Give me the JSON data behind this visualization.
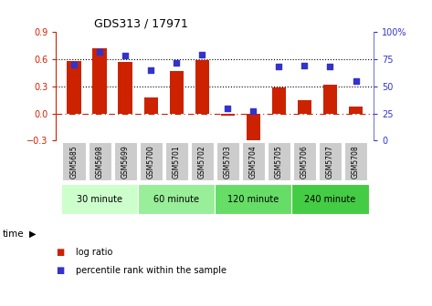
{
  "title": "GDS313 / 17971",
  "samples": [
    "GSM5685",
    "GSM5698",
    "GSM5699",
    "GSM5700",
    "GSM5701",
    "GSM5702",
    "GSM5703",
    "GSM5704",
    "GSM5705",
    "GSM5706",
    "GSM5707",
    "GSM5708"
  ],
  "log_ratio": [
    0.58,
    0.72,
    0.57,
    0.18,
    0.47,
    0.59,
    -0.02,
    -0.38,
    0.29,
    0.15,
    0.32,
    0.08
  ],
  "percentile": [
    70,
    82,
    78,
    65,
    72,
    79,
    30,
    27,
    68,
    69,
    68,
    55
  ],
  "bar_color": "#cc2200",
  "dot_color": "#3333cc",
  "ylim_left": [
    -0.3,
    0.9
  ],
  "ylim_right": [
    0,
    100
  ],
  "yticks_left": [
    -0.3,
    0.0,
    0.3,
    0.6,
    0.9
  ],
  "yticks_right": [
    0,
    25,
    50,
    75,
    100
  ],
  "hline_dotted": [
    0.3,
    0.6
  ],
  "hline_dash": 0.0,
  "groups": [
    {
      "label": "30 minute",
      "start": 0,
      "end": 3,
      "color": "#ccffcc"
    },
    {
      "label": "60 minute",
      "start": 3,
      "end": 6,
      "color": "#99ee99"
    },
    {
      "label": "120 minute",
      "start": 6,
      "end": 9,
      "color": "#66dd66"
    },
    {
      "label": "240 minute",
      "start": 9,
      "end": 12,
      "color": "#44cc44"
    }
  ],
  "time_label": "time",
  "legend_bar_label": "log ratio",
  "legend_dot_label": "percentile rank within the sample",
  "bg_color": "#ffffff",
  "tick_label_bg": "#cccccc",
  "right_axis_top_label": "100%"
}
